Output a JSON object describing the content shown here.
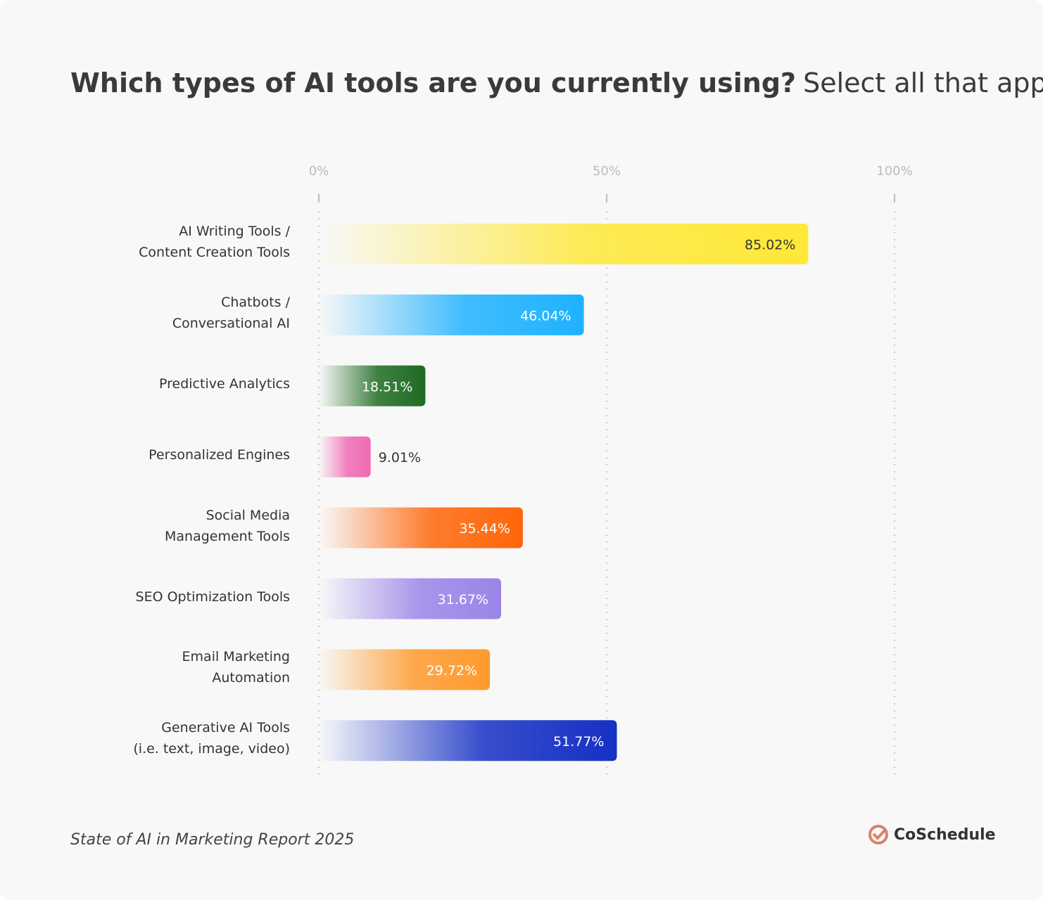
{
  "chart_data": {
    "type": "bar",
    "orientation": "horizontal",
    "title": "Which types of AI tools are you currently using?",
    "subtitle": "Select all that apply.",
    "categories": [
      "AI Writing Tools /\nContent Creation Tools",
      "Chatbots /\nConversational AI",
      "Predictive Analytics",
      "Personalized Engines",
      "Social Media\nManagement Tools",
      "SEO Optimization Tools",
      "Email Marketing\nAutomation",
      "Generative AI Tools\n(i.e. text, image, video)"
    ],
    "values": [
      85.02,
      46.04,
      18.51,
      9.01,
      35.44,
      31.67,
      29.72,
      51.77
    ],
    "value_labels": [
      "85.02%",
      "46.04%",
      "18.51%",
      "9.01%",
      "35.44%",
      "31.67%",
      "29.72%",
      "51.77%"
    ],
    "colors": [
      "#ffe838",
      "#1fb2ff",
      "#1f6b22",
      "#f06bb3",
      "#ff660a",
      "#9b84e8",
      "#ff9a2e",
      "#1530c4"
    ],
    "xlim": [
      0,
      100
    ],
    "xticks": [
      {
        "value": 0,
        "label": "0%"
      },
      {
        "value": 50,
        "label": "50%"
      },
      {
        "value": 100,
        "label": "100%"
      }
    ],
    "grid": true,
    "source": "State of AI in Marketing Report 2025",
    "brand": "CoSchedule"
  }
}
